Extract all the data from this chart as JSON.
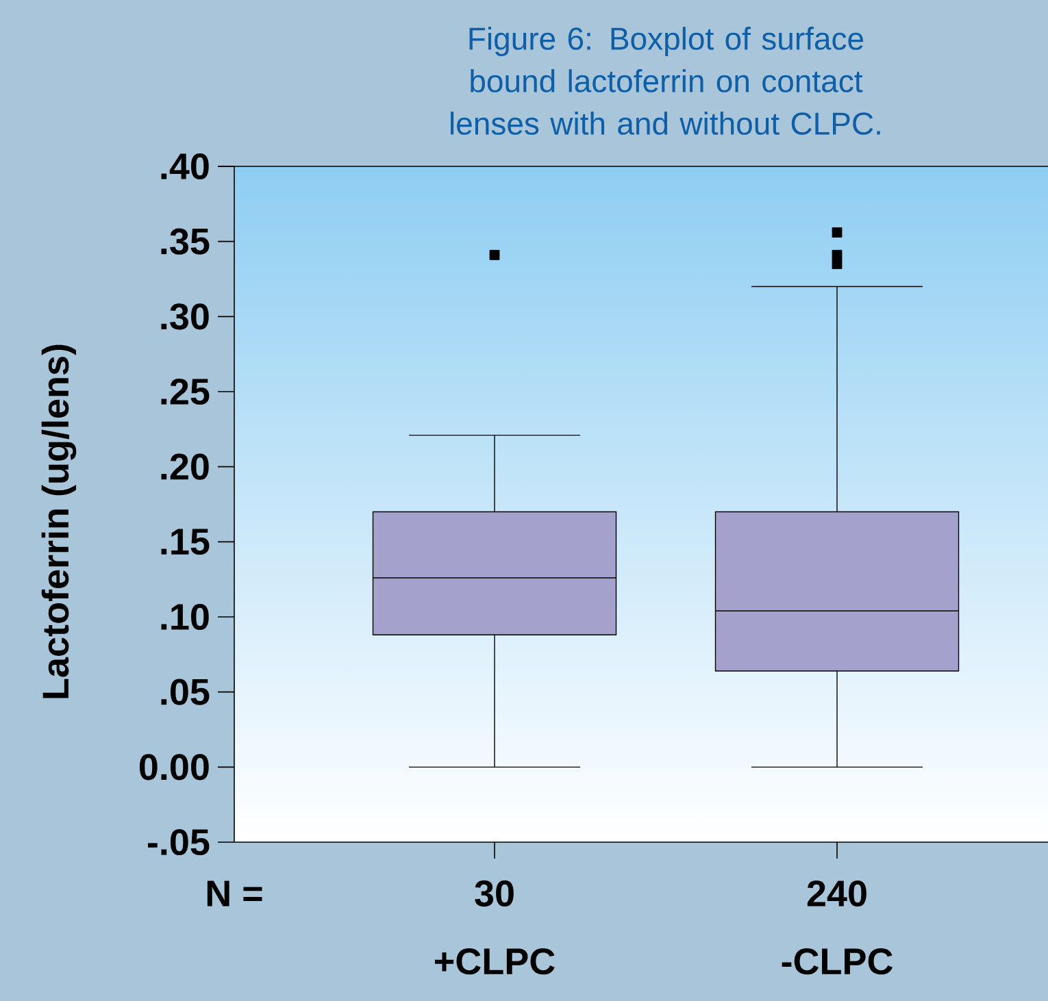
{
  "chart_data": {
    "type": "box",
    "title": "Figure 6: Boxplot of surface bound lactoferrin on contact lenses with and without CLPC.",
    "ylabel": "Lactoferrin (ug/lens)",
    "categories": [
      "+CLPC",
      "-CLPC"
    ],
    "color": "#a4a2cc",
    "marker": "square",
    "boxes": [
      {
        "low": 0,
        "q1": 0.088,
        "median": 0.126,
        "q3": 0.17,
        "high": 0.221,
        "outliers": [
          0.341
        ]
      },
      {
        "low": 0,
        "q1": 0.064,
        "median": 0.104,
        "q3": 0.17,
        "high": 0.32,
        "outliers": [
          0.356,
          0.341,
          0.335
        ]
      }
    ],
    "ylim": [
      -0.05,
      0.4
    ],
    "yticks": [
      {
        "value": -0.05,
        "label": "-.05"
      },
      {
        "value": 0,
        "label": "0.00"
      },
      {
        "value": 0.05,
        "label": ".05"
      },
      {
        "value": 0.1,
        "label": ".10"
      },
      {
        "value": 0.15,
        "label": ".15"
      },
      {
        "value": 0.2,
        "label": ".20"
      },
      {
        "value": 0.25,
        "label": ".25"
      },
      {
        "value": 0.3,
        "label": ".30"
      },
      {
        "value": 0.35,
        "label": ".35"
      },
      {
        "value": 0.4,
        "label": ".40"
      }
    ],
    "annotations": [
      "N =",
      "30",
      "240"
    ]
  }
}
